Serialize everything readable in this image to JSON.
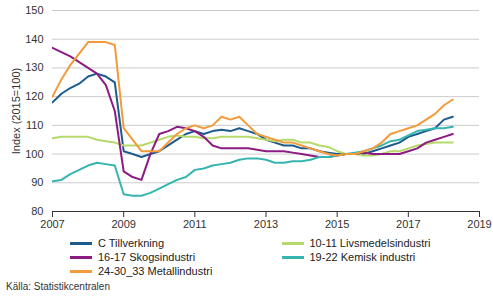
{
  "chart_data": {
    "type": "line",
    "y_label": "Index (2015=100)",
    "caption": "Källa: Statistikcentralen",
    "x": [
      2007,
      2007.25,
      2007.5,
      2007.75,
      2008,
      2008.25,
      2008.5,
      2008.75,
      2009,
      2009.25,
      2009.5,
      2009.75,
      2010,
      2010.25,
      2010.5,
      2010.75,
      2011,
      2011.25,
      2011.5,
      2011.75,
      2012,
      2012.25,
      2012.5,
      2012.75,
      2013,
      2013.25,
      2013.5,
      2013.75,
      2014,
      2014.25,
      2014.5,
      2014.75,
      2015,
      2015.25,
      2015.5,
      2015.75,
      2016,
      2016.25,
      2016.5,
      2016.75,
      2017,
      2017.25,
      2017.5,
      2017.75,
      2018,
      2018.25
    ],
    "series": [
      {
        "name": "C Tillverkning",
        "color": "#1d5b8c",
        "values": [
          118,
          121,
          123,
          124.5,
          127,
          128,
          127,
          125,
          101,
          100,
          99,
          100,
          101,
          103,
          105,
          107,
          108,
          107,
          108,
          108.5,
          108,
          109,
          108,
          107,
          105,
          104,
          103,
          103,
          102,
          102,
          101,
          100.5,
          100,
          100,
          100,
          100,
          101,
          102,
          103,
          104,
          106,
          107,
          108,
          109,
          112,
          113
        ]
      },
      {
        "name": "10-11 Livsmedelsindustri",
        "color": "#b5d96b",
        "values": [
          105.5,
          106,
          106,
          106,
          106,
          105,
          104.5,
          104,
          103,
          103,
          103,
          104,
          105,
          106,
          106.5,
          106,
          106,
          105.5,
          105.5,
          106,
          106,
          106,
          106,
          105.5,
          105,
          104.5,
          105,
          105,
          104,
          104,
          103,
          102.5,
          101,
          100,
          100,
          99.5,
          99.5,
          100,
          101,
          101,
          102,
          103,
          103.5,
          104,
          104,
          104
        ]
      },
      {
        "name": "16-17 Skogsindustri",
        "color": "#8c1b84",
        "values": [
          137,
          135.5,
          134,
          132,
          130,
          128,
          124,
          115,
          94,
          92,
          91,
          100,
          107,
          108,
          109.5,
          109,
          108,
          106,
          103,
          102,
          102,
          102,
          102,
          101.5,
          101,
          101,
          101,
          100.5,
          100,
          99.5,
          99,
          99,
          99.5,
          100,
          100,
          100.5,
          100,
          100,
          100,
          100,
          101,
          102,
          104,
          105,
          106,
          107
        ]
      },
      {
        "name": "19-22 Kemisk industri",
        "color": "#36b5b0",
        "values": [
          90.5,
          91,
          93,
          94.5,
          96,
          97,
          96.5,
          96,
          86,
          85.5,
          85.5,
          86.5,
          88,
          89.5,
          91,
          92,
          94.5,
          95,
          96,
          96.5,
          97,
          98,
          98.5,
          98.5,
          98,
          97,
          97,
          97.5,
          97.5,
          98,
          99,
          99,
          99.5,
          100,
          100.5,
          101,
          102,
          103,
          104.5,
          105,
          106.5,
          108,
          108.5,
          109,
          109,
          109.5
        ]
      },
      {
        "name": "24-30_33 Metallindustri",
        "color": "#f39a3a",
        "values": [
          120,
          126,
          131,
          135,
          139,
          139,
          139,
          138,
          109,
          105,
          101,
          101,
          101,
          104,
          107,
          109,
          110,
          109,
          110,
          113,
          112,
          113,
          110,
          107,
          106,
          105,
          104,
          104,
          103,
          102,
          101,
          100,
          99.5,
          100,
          100,
          101,
          102,
          104,
          107,
          108,
          109,
          110,
          112,
          114,
          117,
          119
        ]
      }
    ],
    "xlim": [
      2007,
      2019
    ],
    "xticks": [
      2007,
      2009,
      2011,
      2013,
      2015,
      2017,
      2019
    ],
    "ylim": [
      80,
      150
    ],
    "yticks": [
      80,
      90,
      100,
      110,
      120,
      130,
      140,
      150
    ],
    "grid": true
  }
}
